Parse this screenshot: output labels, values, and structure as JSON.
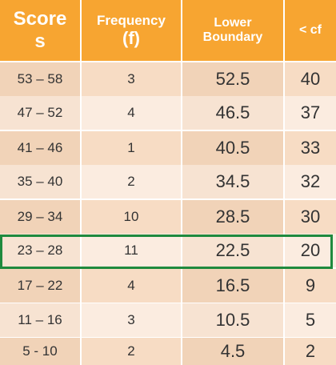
{
  "header": {
    "scores": "Score\ns",
    "frequency": "Frequency",
    "frequency_symbol": "(f)",
    "lower_boundary": "Lower\nBoundary",
    "less_cf": "< cf"
  },
  "rows": [
    {
      "scores": "53 – 58",
      "frequency": "3",
      "lower_boundary": "52.5",
      "less_cf": "40"
    },
    {
      "scores": "47 – 52",
      "frequency": "4",
      "lower_boundary": "46.5",
      "less_cf": "37"
    },
    {
      "scores": "41 – 46",
      "frequency": "1",
      "lower_boundary": "40.5",
      "less_cf": "33"
    },
    {
      "scores": "35 – 40",
      "frequency": "2",
      "lower_boundary": "34.5",
      "less_cf": "32"
    },
    {
      "scores": "29 – 34",
      "frequency": "10",
      "lower_boundary": "28.5",
      "less_cf": "30"
    },
    {
      "scores": "23 – 28",
      "frequency": "11",
      "lower_boundary": "22.5",
      "less_cf": "20"
    },
    {
      "scores": "17 – 22",
      "frequency": "4",
      "lower_boundary": "16.5",
      "less_cf": "9"
    },
    {
      "scores": "11 – 16",
      "frequency": "3",
      "lower_boundary": "10.5",
      "less_cf": "5"
    },
    {
      "scores": "5 - 10",
      "frequency": "2",
      "lower_boundary": "4.5",
      "less_cf": "2"
    }
  ],
  "highlight_color": "#1f8a3e"
}
